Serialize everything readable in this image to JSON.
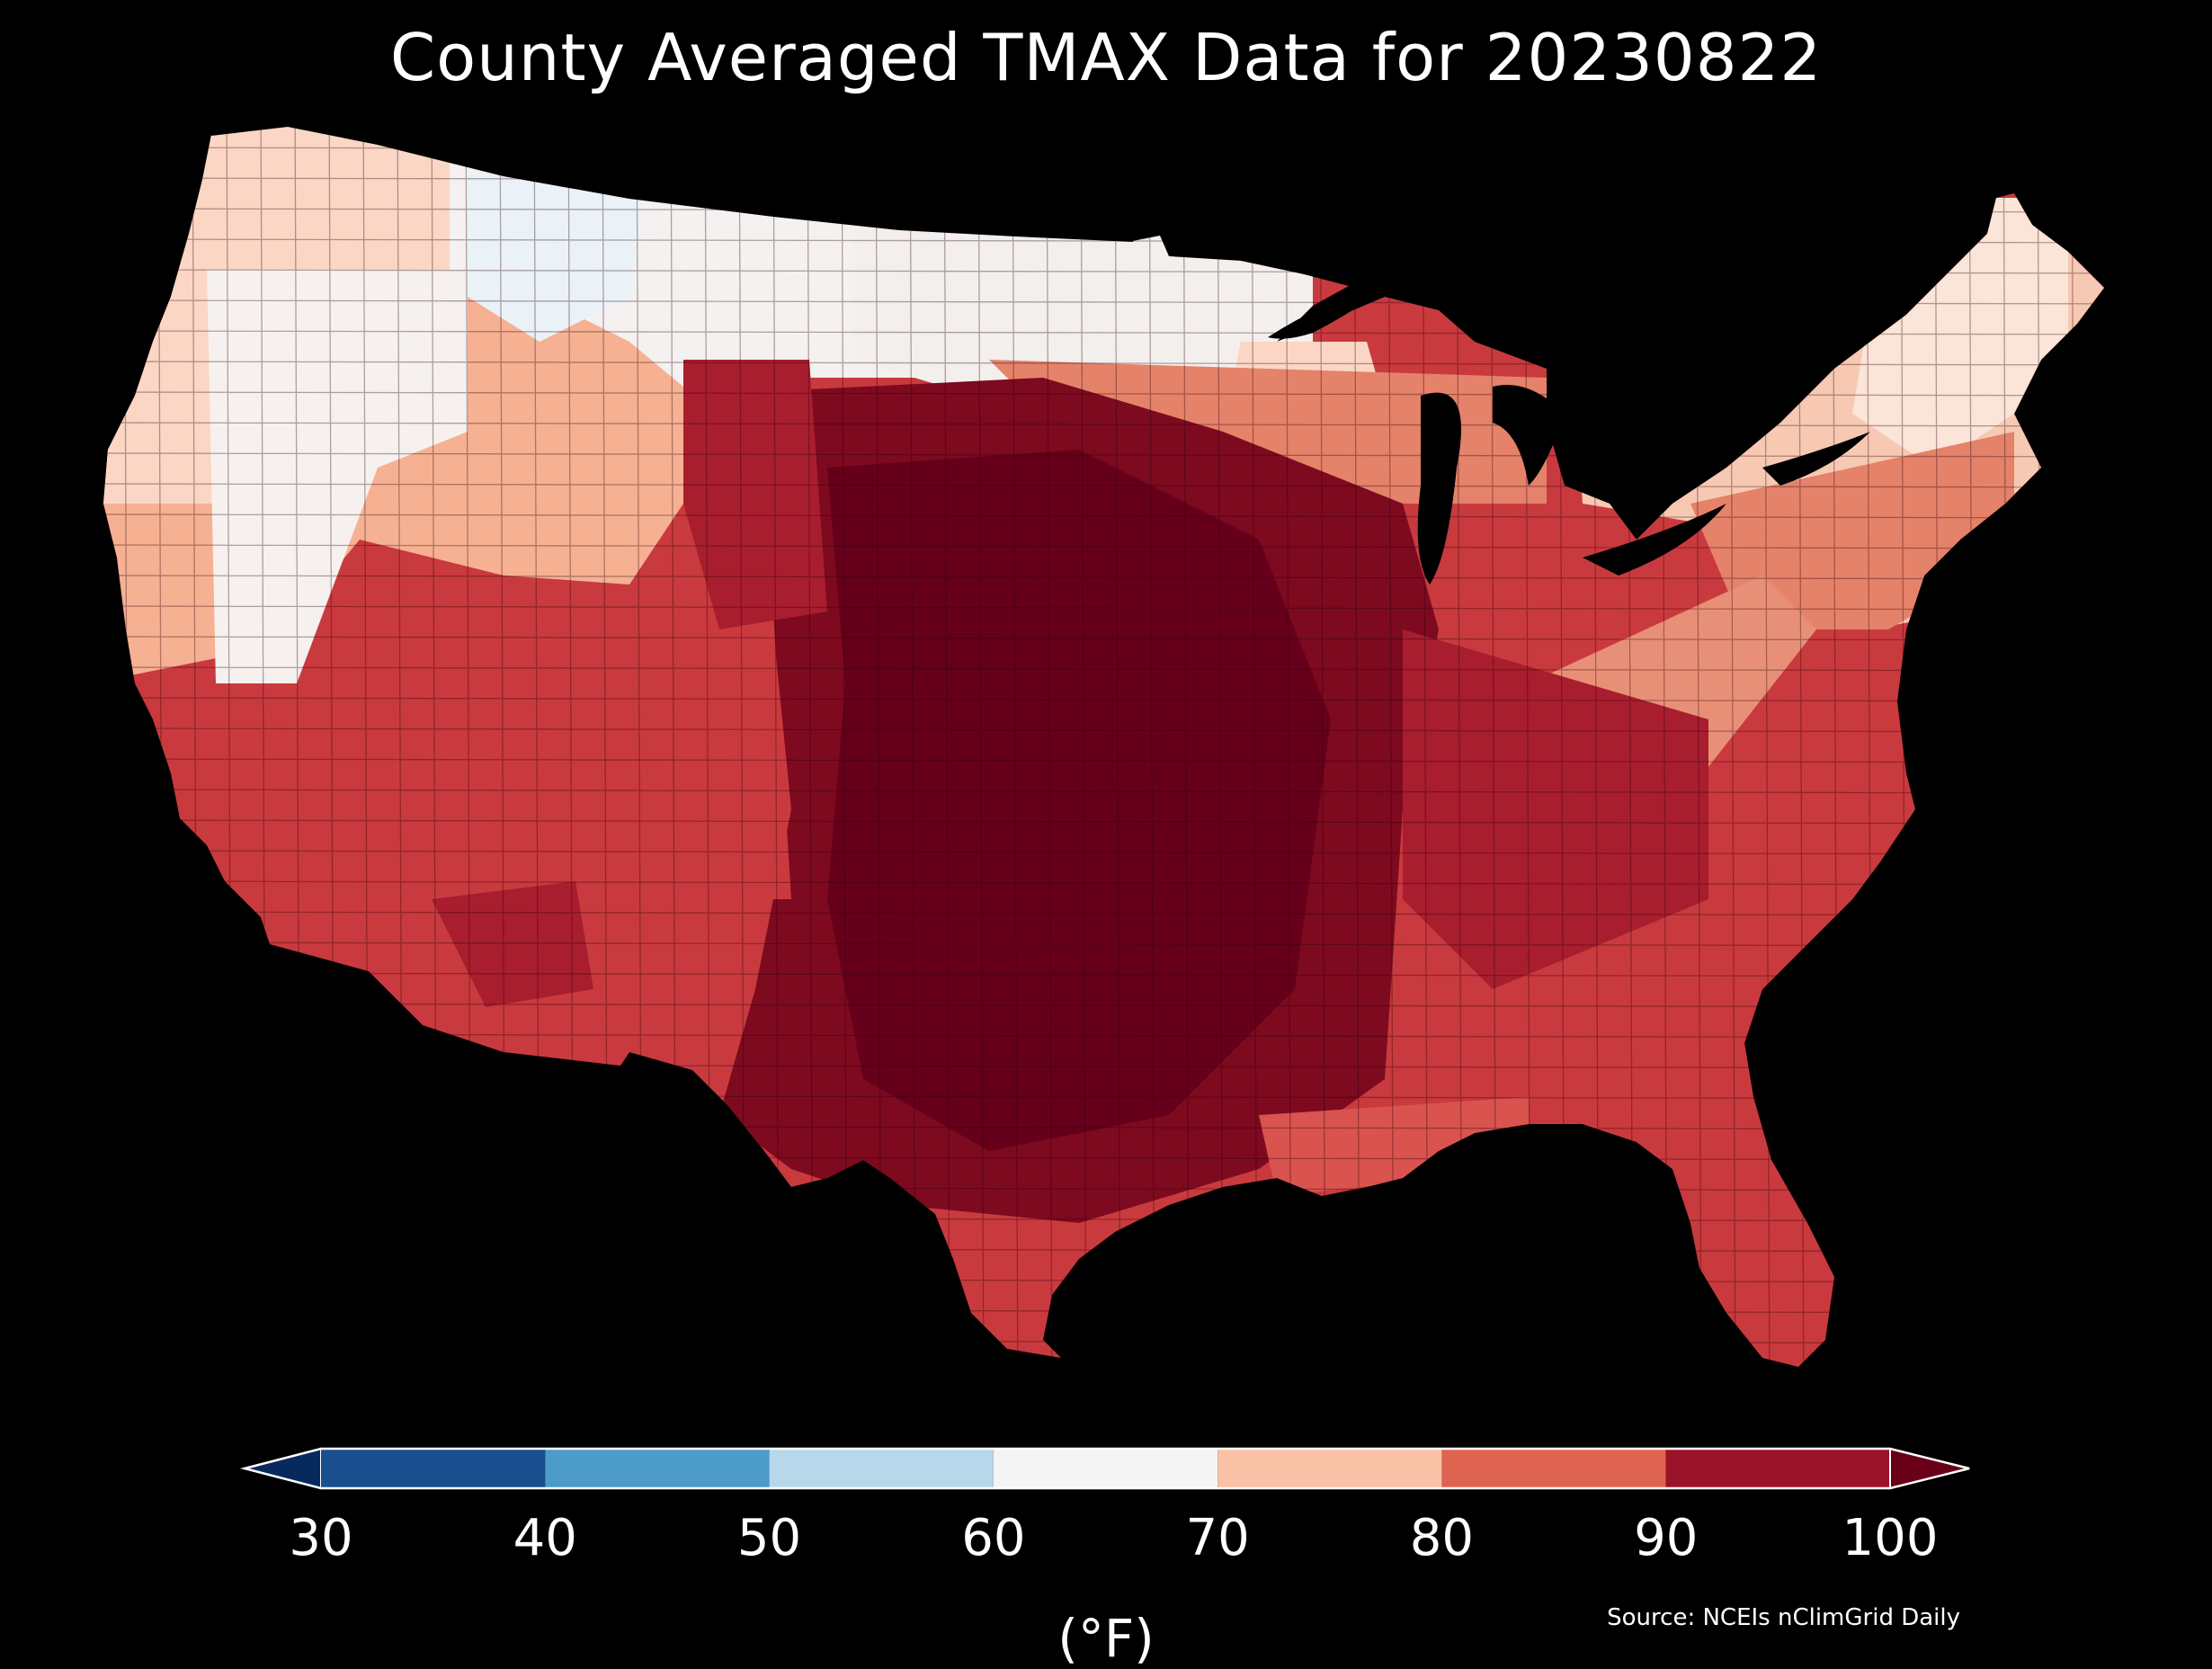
{
  "title": "County Averaged TMAX Data for 20230822",
  "colorbar": {
    "ticks": [
      "30",
      "40",
      "50",
      "60",
      "70",
      "80",
      "90",
      "100"
    ],
    "bins": [
      {
        "range": [
          30,
          40
        ],
        "color": "#1a4f8f"
      },
      {
        "range": [
          40,
          50
        ],
        "color": "#4d9bc9"
      },
      {
        "range": [
          50,
          60
        ],
        "color": "#b7d8ea"
      },
      {
        "range": [
          60,
          70
        ],
        "color": "#f4f4f4"
      },
      {
        "range": [
          70,
          80
        ],
        "color": "#f9c1a5"
      },
      {
        "range": [
          80,
          90
        ],
        "color": "#de6451"
      },
      {
        "range": [
          90,
          100
        ],
        "color": "#9a1328"
      }
    ],
    "under_color": "#072a5e",
    "over_color": "#6a0018",
    "units": "(°F)"
  },
  "source": "Source: NCEIs nClimGrid Daily",
  "map": {
    "region": "Contiguous United States",
    "palette": {
      "cool": "#eaf2f8",
      "white": "#f6f1ee",
      "light": "#fbd6c4",
      "peach": "#f6b193",
      "salmon": "#e5826a",
      "red": "#c93a3e",
      "crimson": "#a81e2e",
      "dark": "#7d0a1f",
      "darkest": "#66001a"
    }
  }
}
